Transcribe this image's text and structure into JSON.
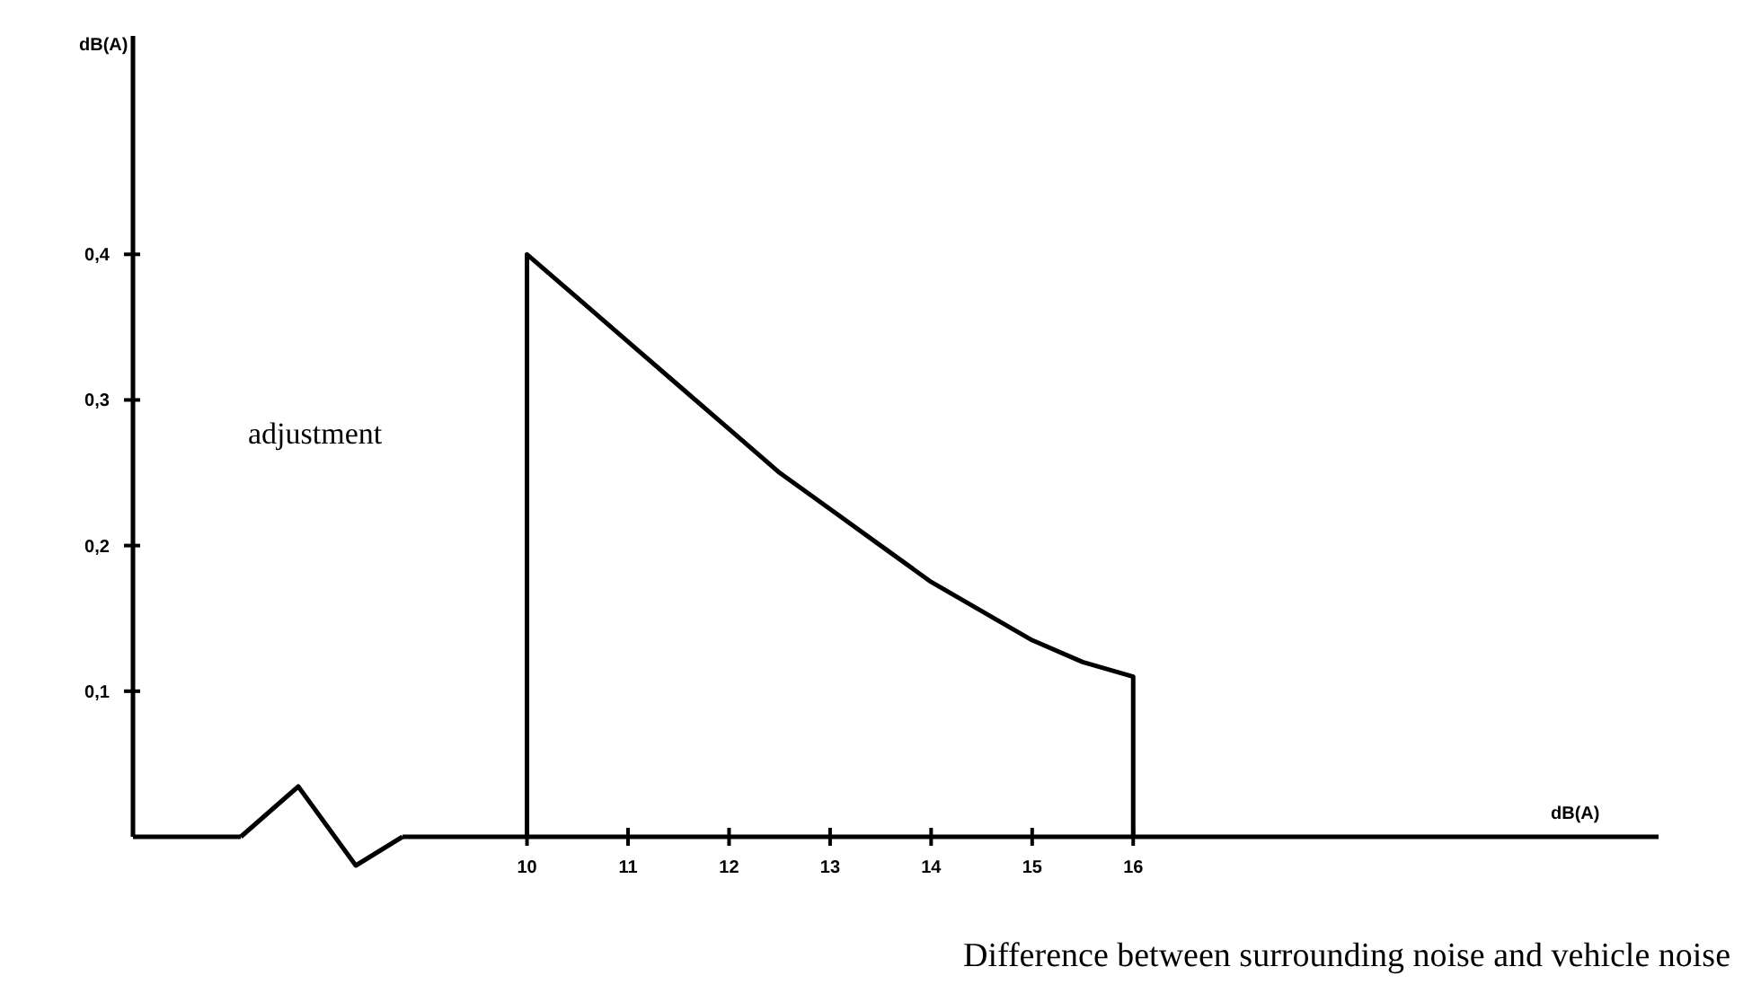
{
  "chart_data": {
    "type": "line",
    "xlabel": "dB(A)",
    "ylabel": "dB(A)",
    "annotations": [
      "adjustment",
      "Difference between surrounding noise and vehicle noise"
    ],
    "xlim": [
      6.1,
      21.2
    ],
    "xticks": [
      10,
      11,
      12,
      13,
      14,
      15,
      16
    ],
    "ylim": [
      0,
      0.55
    ],
    "yticks": [
      {
        "value": 0.1,
        "label": "0,1"
      },
      {
        "value": 0.2,
        "label": "0,2"
      },
      {
        "value": 0.3,
        "label": "0,3"
      },
      {
        "value": 0.4,
        "label": "0,4"
      }
    ],
    "grid": false,
    "marker": "none",
    "line_style": "solid",
    "series": [
      {
        "color": "#000000",
        "x": [
          10,
          10,
          10.5,
          11,
          11.5,
          12,
          12.5,
          13,
          13.5,
          14,
          14.5,
          15,
          15.5,
          16,
          16
        ],
        "values": [
          0,
          0.4,
          0.37,
          0.34,
          0.31,
          0.28,
          0.25,
          0.225,
          0.2,
          0.175,
          0.155,
          0.135,
          0.12,
          0.11,
          0
        ]
      }
    ]
  }
}
